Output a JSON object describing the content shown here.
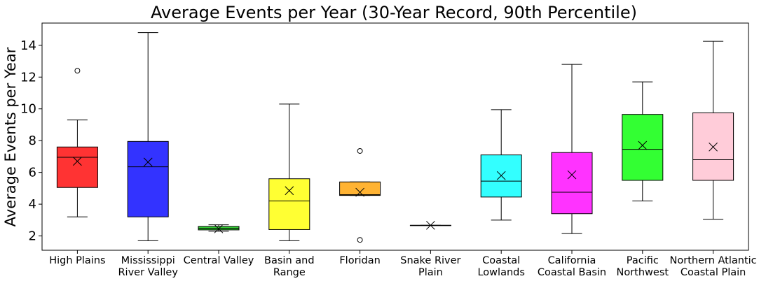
{
  "chart_data": {
    "type": "box",
    "title": "Average Events per Year (30-Year Record, 90th Percentile)",
    "xlabel": "",
    "ylabel": "Average Events per Year",
    "ylim": [
      1.1,
      15.4
    ],
    "yticks": [
      2,
      4,
      6,
      8,
      10,
      12,
      14
    ],
    "grid": false,
    "legend": "none",
    "boxes": [
      {
        "label": "High Plains",
        "lines": [
          "High Plains"
        ],
        "color": "#ff3333",
        "min": 3.2,
        "q1": 5.05,
        "median": 6.95,
        "q3": 7.6,
        "max": 9.3,
        "mean": 6.7,
        "outliers": [
          12.4
        ]
      },
      {
        "label": "Mississippi River Valley",
        "lines": [
          "Mississippi",
          "River Valley"
        ],
        "color": "#3333ff",
        "min": 1.7,
        "q1": 3.2,
        "median": 6.35,
        "q3": 7.95,
        "max": 14.8,
        "mean": 6.65,
        "outliers": []
      },
      {
        "label": "Central Valley",
        "lines": [
          "Central Valley"
        ],
        "color": "#33cc33",
        "min": 2.3,
        "q1": 2.38,
        "median": 2.48,
        "q3": 2.6,
        "max": 2.7,
        "mean": 2.45,
        "outliers": []
      },
      {
        "label": "Basin and Range",
        "lines": [
          "Basin and",
          "Range"
        ],
        "color": "#ffff33",
        "min": 1.7,
        "q1": 2.4,
        "median": 4.2,
        "q3": 5.6,
        "max": 10.3,
        "mean": 4.85,
        "outliers": []
      },
      {
        "label": "Floridan",
        "lines": [
          "Floridan"
        ],
        "color": "#ffb333",
        "min": 4.55,
        "q1": 4.55,
        "median": 4.6,
        "q3": 5.4,
        "max": 5.4,
        "mean": 4.75,
        "outliers": [
          7.35,
          1.75
        ]
      },
      {
        "label": "Snake River Plain",
        "lines": [
          "Snake River",
          "Plain"
        ],
        "color": "#9966cc",
        "min": 2.67,
        "q1": 2.67,
        "median": 2.67,
        "q3": 2.67,
        "max": 2.67,
        "mean": 2.67,
        "outliers": []
      },
      {
        "label": "Coastal Lowlands",
        "lines": [
          "Coastal",
          "Lowlands"
        ],
        "color": "#33ffff",
        "min": 3.0,
        "q1": 4.45,
        "median": 5.45,
        "q3": 7.1,
        "max": 9.95,
        "mean": 5.8,
        "outliers": []
      },
      {
        "label": "California Coastal Basin",
        "lines": [
          "California",
          "Coastal Basin"
        ],
        "color": "#ff33ff",
        "min": 2.15,
        "q1": 3.4,
        "median": 4.75,
        "q3": 7.25,
        "max": 12.8,
        "mean": 5.85,
        "outliers": []
      },
      {
        "label": "Pacific Northwest",
        "lines": [
          "Pacific",
          "Northwest"
        ],
        "color": "#33ff33",
        "min": 4.2,
        "q1": 5.5,
        "median": 7.45,
        "q3": 9.65,
        "max": 11.7,
        "mean": 7.7,
        "outliers": []
      },
      {
        "label": "Northern Atlantic Coastal Plain",
        "lines": [
          "Northern Atlantic",
          "Coastal Plain"
        ],
        "color": "#ffccd9",
        "min": 3.05,
        "q1": 5.5,
        "median": 6.8,
        "q3": 9.75,
        "max": 14.25,
        "mean": 7.6,
        "outliers": []
      }
    ]
  }
}
